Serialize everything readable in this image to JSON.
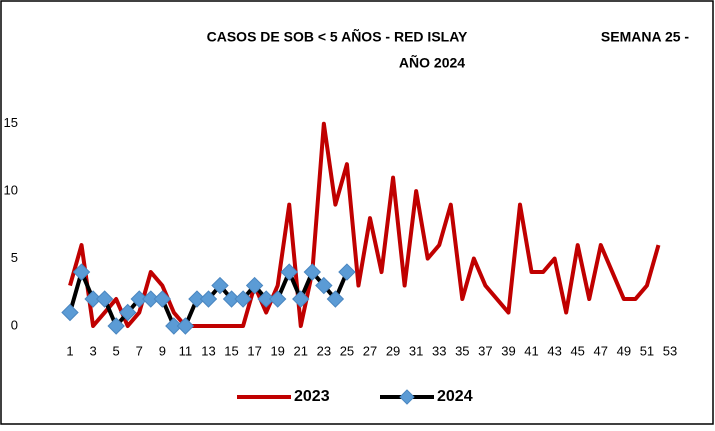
{
  "chart_data": {
    "type": "line",
    "title": [
      "CASOS DE SOB  < 5 AÑOS - RED ISLAY",
      "SEMANA 25 -",
      "AÑO 2024"
    ],
    "categories": [
      1,
      null,
      3,
      null,
      5,
      null,
      7,
      null,
      9,
      null,
      11,
      null,
      13,
      null,
      15,
      null,
      17,
      null,
      19,
      null,
      21,
      null,
      23,
      null,
      25,
      null,
      27,
      null,
      29,
      null,
      31,
      null,
      33,
      null,
      35,
      null,
      37,
      null,
      39,
      null,
      41,
      null,
      43,
      null,
      45,
      null,
      47,
      null,
      49,
      null,
      51,
      null,
      53
    ],
    "series": [
      {
        "name": "2023",
        "color": "#c00000",
        "marker": "none",
        "values": [
          3,
          6,
          0,
          1,
          2,
          0,
          1,
          4,
          3,
          1,
          0,
          0,
          0,
          0,
          0,
          0,
          3,
          1,
          3,
          9,
          0,
          4,
          15,
          9,
          12,
          3,
          8,
          4,
          11,
          3,
          10,
          5,
          6,
          9,
          2,
          5,
          3,
          2,
          1,
          9,
          4,
          4,
          5,
          1,
          6,
          2,
          6,
          4,
          2,
          2,
          3,
          6,
          null
        ]
      },
      {
        "name": "2024",
        "color": "#000000",
        "marker": "diamond",
        "marker_color": "#5b9bd5",
        "values": [
          1,
          4,
          2,
          2,
          0,
          1,
          2,
          2,
          2,
          0,
          0,
          2,
          2,
          3,
          2,
          2,
          3,
          2,
          2,
          4,
          2,
          4,
          3,
          2,
          4,
          null,
          null,
          null,
          null,
          null,
          null,
          null,
          null,
          null,
          null,
          null,
          null,
          null,
          null,
          null,
          null,
          null,
          null,
          null,
          null,
          null,
          null,
          null,
          null,
          null,
          null,
          null,
          null
        ]
      }
    ],
    "ylim": [
      0,
      17.5
    ],
    "yticks": [
      0,
      5,
      10,
      15
    ],
    "grid": false,
    "legend": "bottom"
  }
}
